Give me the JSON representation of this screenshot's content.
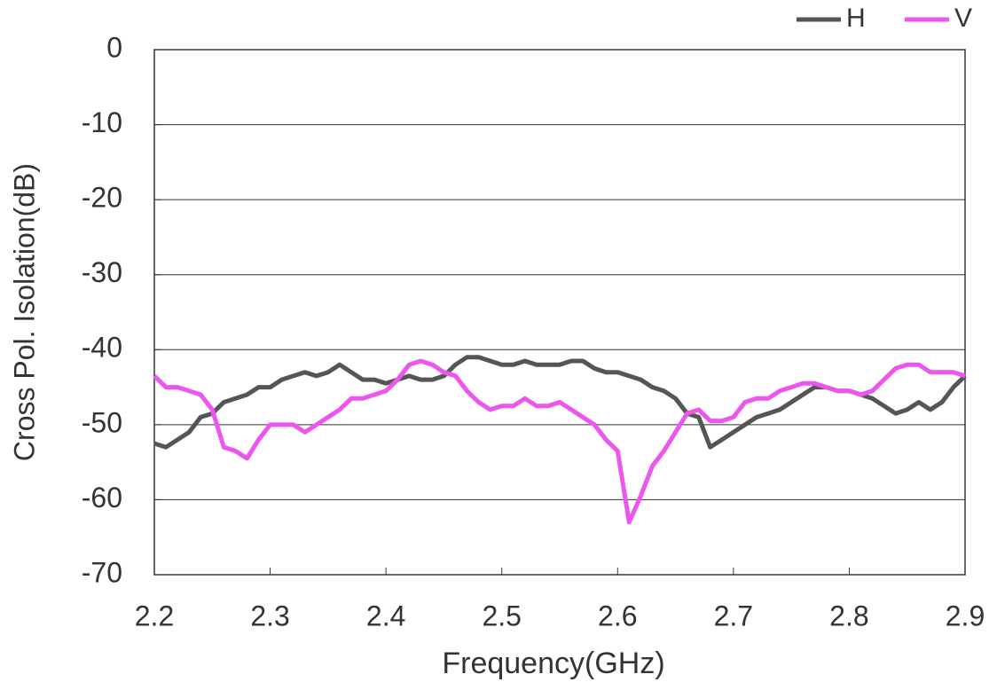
{
  "chart_data": {
    "type": "line",
    "xlabel": "Frequency(GHz)",
    "ylabel": "Cross Pol. Isolation(dB)",
    "x": [
      2.2,
      2.21,
      2.22,
      2.23,
      2.24,
      2.25,
      2.26,
      2.27,
      2.28,
      2.29,
      2.3,
      2.31,
      2.32,
      2.33,
      2.34,
      2.35,
      2.36,
      2.37,
      2.38,
      2.39,
      2.4,
      2.41,
      2.42,
      2.43,
      2.44,
      2.45,
      2.46,
      2.47,
      2.48,
      2.49,
      2.5,
      2.51,
      2.52,
      2.53,
      2.54,
      2.55,
      2.56,
      2.57,
      2.58,
      2.59,
      2.6,
      2.61,
      2.62,
      2.63,
      2.64,
      2.65,
      2.66,
      2.67,
      2.68,
      2.69,
      2.7,
      2.71,
      2.72,
      2.73,
      2.74,
      2.75,
      2.76,
      2.77,
      2.78,
      2.79,
      2.8,
      2.81,
      2.82,
      2.83,
      2.84,
      2.85,
      2.86,
      2.87,
      2.88,
      2.89,
      2.9
    ],
    "series": [
      {
        "name": "H",
        "color": "#555555",
        "values": [
          -52.5,
          -53,
          -52,
          -51,
          -49,
          -48.5,
          -47,
          -46.5,
          -46,
          -45,
          -45,
          -44,
          -43.5,
          -43,
          -43.5,
          -43,
          -42,
          -43,
          -44,
          -44,
          -44.5,
          -44,
          -43.5,
          -44,
          -44,
          -43.5,
          -42,
          -41,
          -41,
          -41.5,
          -42,
          -42,
          -41.5,
          -42,
          -42,
          -42,
          -41.5,
          -41.5,
          -42.5,
          -43,
          -43,
          -43.5,
          -44,
          -45,
          -45.5,
          -46.5,
          -48.5,
          -49,
          -53,
          -52,
          -51,
          -50,
          -49,
          -48.5,
          -48,
          -47,
          -46,
          -45,
          -45,
          -45.5,
          -45.5,
          -46,
          -46.5,
          -47.5,
          -48.5,
          -48,
          -47,
          -48,
          -47,
          -45,
          -43.5
        ]
      },
      {
        "name": "V",
        "color": "#ee55ee",
        "values": [
          -43.5,
          -45,
          -45,
          -45.5,
          -46,
          -48,
          -53,
          -53.5,
          -54.5,
          -52,
          -50,
          -50,
          -50,
          -51,
          -50,
          -49,
          -48,
          -46.5,
          -46.5,
          -46,
          -45.5,
          -44,
          -42,
          -41.5,
          -42,
          -43,
          -43.5,
          -45.5,
          -47,
          -48,
          -47.5,
          -47.5,
          -46.5,
          -47.5,
          -47.5,
          -47,
          -48,
          -49,
          -50,
          -52,
          -53.5,
          -63,
          -59.5,
          -55.5,
          -53.5,
          -51,
          -48.5,
          -48,
          -49.5,
          -49.5,
          -49,
          -47,
          -46.5,
          -46.5,
          -45.5,
          -45,
          -44.5,
          -44.5,
          -45,
          -45.5,
          -45.5,
          -46,
          -45.5,
          -44,
          -42.5,
          -42,
          -42,
          -43,
          -43,
          -43,
          -43.5
        ]
      }
    ],
    "xlim": [
      2.2,
      2.9
    ],
    "xticks": [
      2.2,
      2.3,
      2.4,
      2.5,
      2.6,
      2.7,
      2.8,
      2.9
    ],
    "ylim": [
      -70,
      0
    ],
    "yticks": [
      0,
      -10,
      -20,
      -30,
      -40,
      -50,
      -60,
      -70
    ],
    "grid": true,
    "legend": "top-right"
  }
}
